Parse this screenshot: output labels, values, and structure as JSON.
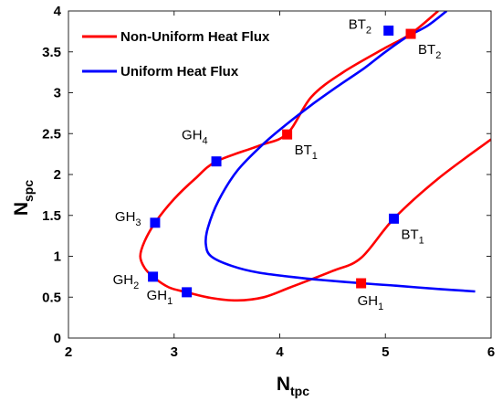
{
  "chart_data": {
    "type": "line",
    "xlabel": "N",
    "xlabel_sub": "tpc",
    "ylabel": "N",
    "ylabel_sub": "spc",
    "xlim": [
      2,
      6
    ],
    "ylim": [
      0,
      4
    ],
    "x_ticks": [
      "2",
      "3",
      "4",
      "5",
      "6"
    ],
    "y_ticks": [
      "0",
      "0.5",
      "1",
      "1.5",
      "2",
      "2.5",
      "3",
      "3.5",
      "4"
    ],
    "grid": false,
    "legend_position": "top-left",
    "series": [
      {
        "name": "Non-Uniform Heat Flux",
        "color": "#ff0000",
        "points": [
          [
            5.5,
            4.0
          ],
          [
            5.24,
            3.72
          ],
          [
            5.0,
            3.55
          ],
          [
            4.6,
            3.25
          ],
          [
            4.3,
            2.95
          ],
          [
            4.07,
            2.5
          ],
          [
            3.8,
            2.35
          ],
          [
            3.4,
            2.16
          ],
          [
            3.2,
            1.95
          ],
          [
            3.0,
            1.7
          ],
          [
            2.82,
            1.41
          ],
          [
            2.72,
            1.18
          ],
          [
            2.68,
            1.0
          ],
          [
            2.72,
            0.86
          ],
          [
            2.8,
            0.75
          ],
          [
            2.95,
            0.62
          ],
          [
            3.12,
            0.56
          ],
          [
            3.35,
            0.49
          ],
          [
            3.6,
            0.46
          ],
          [
            3.85,
            0.5
          ],
          [
            4.1,
            0.62
          ],
          [
            4.5,
            0.82
          ],
          [
            4.77,
            0.98
          ],
          [
            5.08,
            1.46
          ],
          [
            5.5,
            1.95
          ],
          [
            6.0,
            2.43
          ]
        ]
      },
      {
        "name": "Uniform Heat Flux",
        "color": "#0000ff",
        "points": [
          [
            5.58,
            4.0
          ],
          [
            5.4,
            3.82
          ],
          [
            5.2,
            3.68
          ],
          [
            5.0,
            3.5
          ],
          [
            4.8,
            3.3
          ],
          [
            4.55,
            3.08
          ],
          [
            4.3,
            2.85
          ],
          [
            4.07,
            2.62
          ],
          [
            3.85,
            2.38
          ],
          [
            3.6,
            2.05
          ],
          [
            3.42,
            1.68
          ],
          [
            3.32,
            1.35
          ],
          [
            3.3,
            1.15
          ],
          [
            3.35,
            1.0
          ],
          [
            3.55,
            0.88
          ],
          [
            3.8,
            0.8
          ],
          [
            4.1,
            0.75
          ],
          [
            4.4,
            0.71
          ],
          [
            4.77,
            0.67
          ],
          [
            5.1,
            0.64
          ],
          [
            5.5,
            0.6
          ],
          [
            5.85,
            0.57
          ]
        ]
      }
    ],
    "markers": [
      {
        "x": 5.03,
        "y": 3.76,
        "color": "#0000ff",
        "label": "BT",
        "sub": "2",
        "side": "left"
      },
      {
        "x": 5.24,
        "y": 3.72,
        "color": "#ff0000",
        "label": "BT",
        "sub": "2",
        "side": "below-right"
      },
      {
        "x": 4.07,
        "y": 2.49,
        "color": "#ff0000",
        "label": "BT",
        "sub": "1",
        "side": "below-right"
      },
      {
        "x": 3.4,
        "y": 2.16,
        "color": "#0000ff",
        "label": "GH",
        "sub": "4",
        "side": "above-left"
      },
      {
        "x": 2.82,
        "y": 1.41,
        "color": "#0000ff",
        "label": "GH",
        "sub": "3",
        "side": "left"
      },
      {
        "x": 2.8,
        "y": 0.75,
        "color": "#0000ff",
        "label": "GH",
        "sub": "2",
        "side": "below-left"
      },
      {
        "x": 3.12,
        "y": 0.56,
        "color": "#0000ff",
        "label": "GH",
        "sub": "1",
        "side": "below-left"
      },
      {
        "x": 5.08,
        "y": 1.46,
        "color": "#0000ff",
        "label": "BT",
        "sub": "1",
        "side": "below-right"
      },
      {
        "x": 4.77,
        "y": 0.67,
        "color": "#ff0000",
        "label": "GH",
        "sub": "1",
        "side": "below"
      }
    ]
  }
}
